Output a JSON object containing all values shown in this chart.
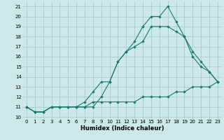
{
  "title": "",
  "xlabel": "Humidex (Indice chaleur)",
  "bg_color": "#cce8e8",
  "grid_color": "#aacccc",
  "line_color": "#1a7a6e",
  "xlim": [
    -0.5,
    23.5
  ],
  "ylim": [
    9.8,
    21.5
  ],
  "yticks": [
    10,
    11,
    12,
    13,
    14,
    15,
    16,
    17,
    18,
    19,
    20,
    21
  ],
  "xticks": [
    0,
    1,
    2,
    3,
    4,
    5,
    6,
    7,
    8,
    9,
    10,
    11,
    12,
    13,
    14,
    15,
    16,
    17,
    18,
    19,
    20,
    21,
    22,
    23
  ],
  "line1_x": [
    0,
    1,
    2,
    3,
    4,
    5,
    6,
    7,
    8,
    9,
    10,
    11,
    12,
    13,
    14,
    15,
    16,
    17,
    18,
    19,
    20,
    21,
    22,
    23
  ],
  "line1_y": [
    11.0,
    10.5,
    10.5,
    11.0,
    11.0,
    11.0,
    11.0,
    11.0,
    11.5,
    11.5,
    11.5,
    11.5,
    11.5,
    11.5,
    12.0,
    12.0,
    12.0,
    12.0,
    12.5,
    12.5,
    13.0,
    13.0,
    13.0,
    13.5
  ],
  "line2_x": [
    0,
    1,
    2,
    3,
    4,
    5,
    6,
    7,
    8,
    9,
    10,
    11,
    12,
    13,
    14,
    15,
    16,
    17,
    18,
    19,
    20,
    21,
    22,
    23
  ],
  "line2_y": [
    11.0,
    10.5,
    10.5,
    11.0,
    11.0,
    11.0,
    11.0,
    11.5,
    12.5,
    13.5,
    13.5,
    15.5,
    16.5,
    17.5,
    19.0,
    20.0,
    20.0,
    21.0,
    19.5,
    18.0,
    16.0,
    15.0,
    14.5,
    13.5
  ],
  "line3_x": [
    0,
    1,
    2,
    3,
    4,
    5,
    6,
    7,
    8,
    9,
    10,
    11,
    12,
    13,
    14,
    15,
    16,
    17,
    18,
    19,
    20,
    21,
    22,
    23
  ],
  "line3_y": [
    11.0,
    10.5,
    10.5,
    11.0,
    11.0,
    11.0,
    11.0,
    11.0,
    11.0,
    12.0,
    13.5,
    15.5,
    16.5,
    17.0,
    17.5,
    19.0,
    19.0,
    19.0,
    18.5,
    18.0,
    16.5,
    15.5,
    14.5,
    13.5
  ],
  "xlabel_fontsize": 6,
  "tick_fontsize": 5
}
